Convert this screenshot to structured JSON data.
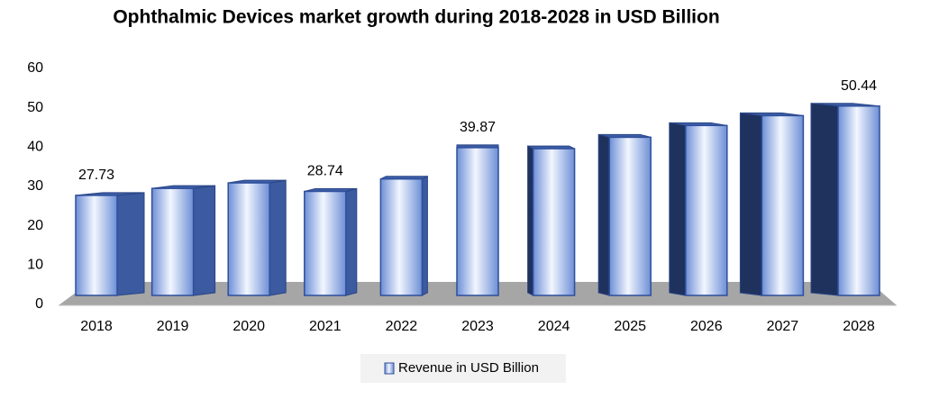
{
  "chart_data": {
    "type": "bar3d",
    "title": "Ophthalmic Devices market growth during 2018-2028 in USD Billion",
    "categories": [
      "2018",
      "2019",
      "2020",
      "2021",
      "2022",
      "2023",
      "2024",
      "2025",
      "2026",
      "2027",
      "2028"
    ],
    "series": [
      {
        "name": "Revenue in USD Billion",
        "color": "#4a6fc4",
        "values": [
          27.73,
          29.5,
          30.9,
          28.74,
          31.9,
          39.87,
          39.6,
          42.5,
          45.5,
          48.0,
          50.44
        ],
        "value_labels": [
          "27.73",
          null,
          null,
          "28.74",
          null,
          "39.87",
          null,
          null,
          null,
          null,
          "50.44"
        ]
      }
    ],
    "ylim": [
      0,
      60
    ],
    "yticks": [
      0,
      10,
      20,
      30,
      40,
      50,
      60
    ]
  }
}
